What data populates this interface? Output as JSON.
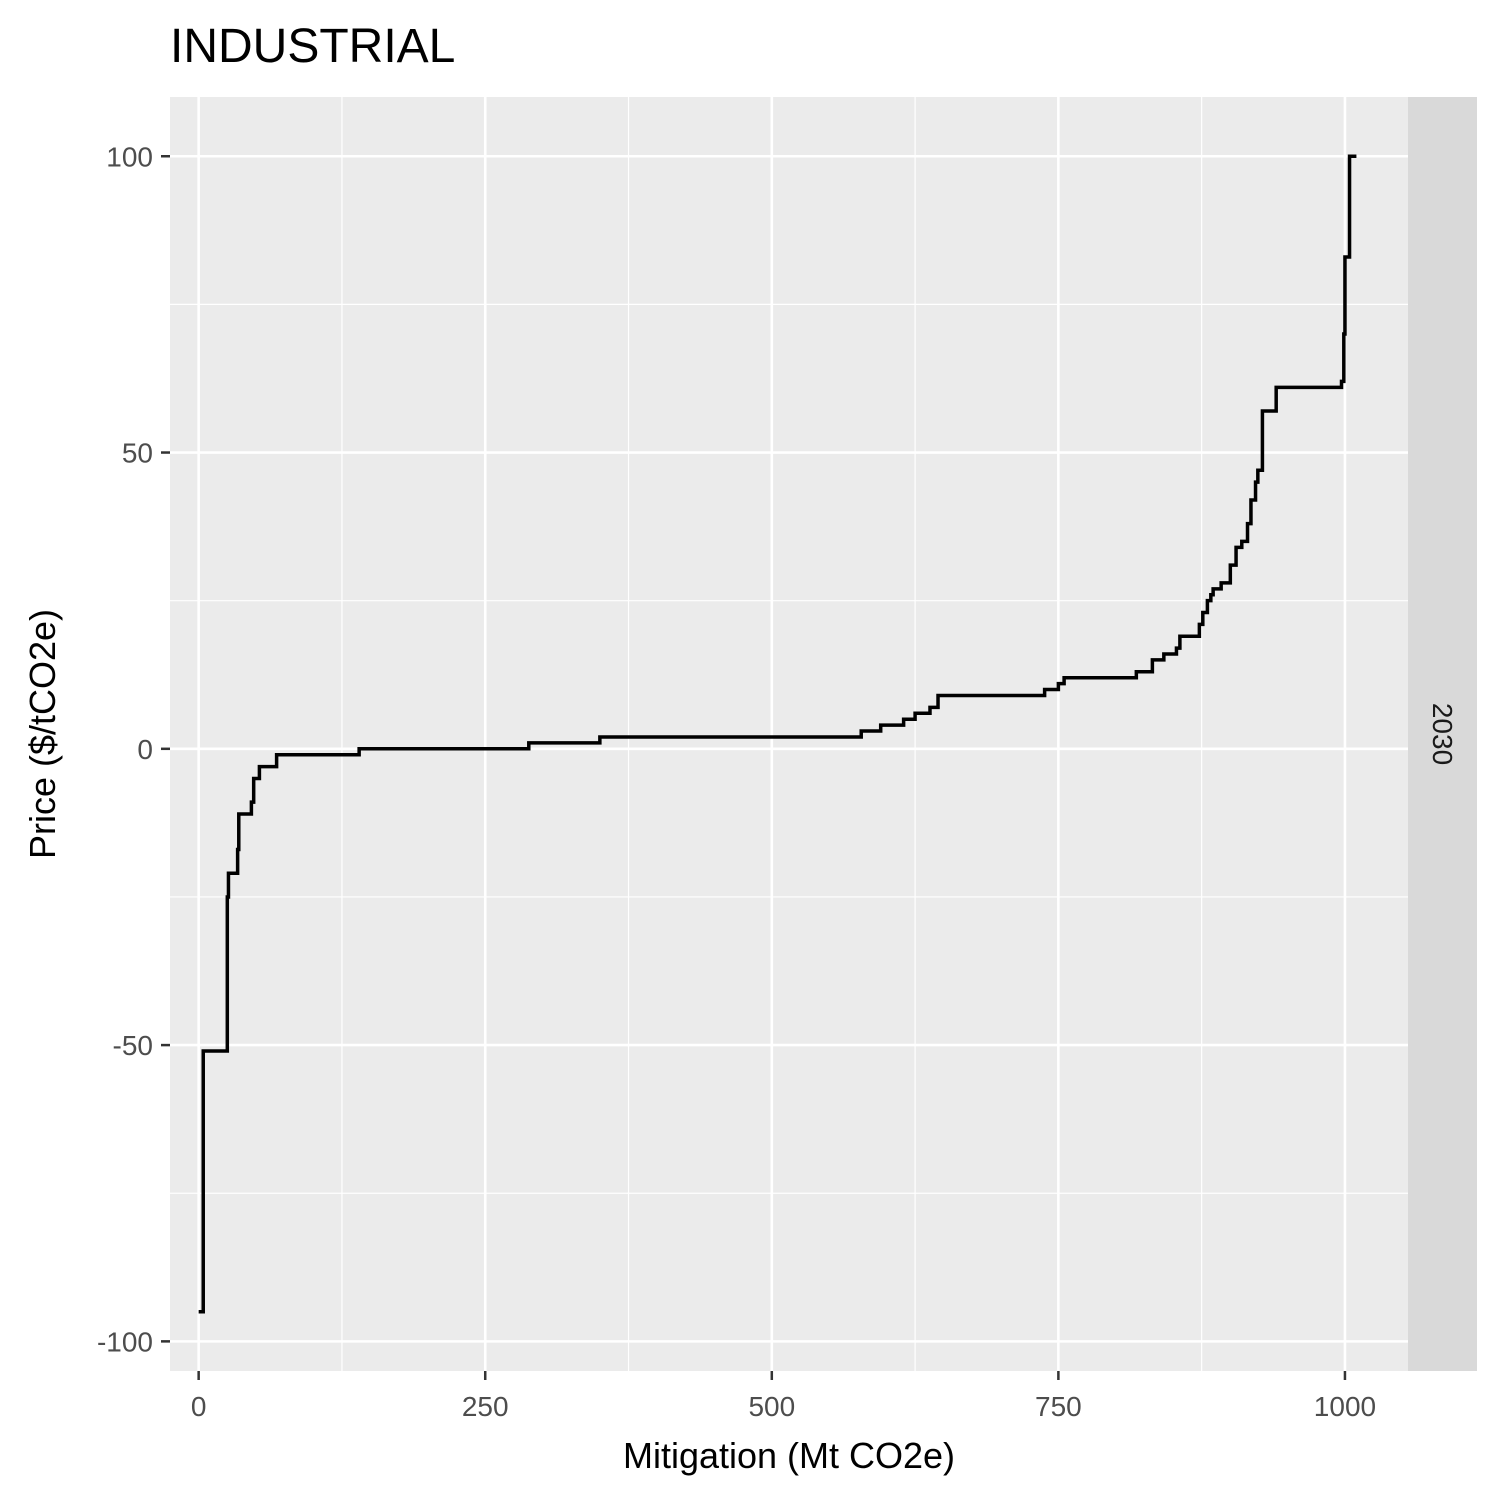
{
  "chart_data": {
    "type": "line",
    "step": true,
    "title": "INDUSTRIAL",
    "xlabel": "Mitigation (Mt CO2e)",
    "ylabel": "Price ($/tCO2e)",
    "facet_label": "2030",
    "xlim": [
      -25,
      1055
    ],
    "ylim": [
      -105,
      110
    ],
    "x_ticks": [
      0,
      250,
      500,
      750,
      1000
    ],
    "x_tick_labels": [
      "0",
      "250",
      "500",
      "750",
      "1000"
    ],
    "x_minor": [
      125,
      375,
      625,
      875
    ],
    "y_ticks": [
      -100,
      -50,
      0,
      50,
      100
    ],
    "y_tick_labels": [
      "-100",
      "-50",
      "0",
      "50",
      "100"
    ],
    "y_minor": [
      -75,
      -25,
      25,
      75
    ],
    "grid": true,
    "colors": {
      "panel": "#ebebeb",
      "strip": "#d9d9d9",
      "grid": "#ffffff",
      "line": "#000000",
      "tick": "#333333"
    },
    "series": [
      {
        "x": [
          0,
          4,
          4,
          25,
          25,
          26,
          26,
          34,
          34,
          35,
          35,
          46,
          46,
          48,
          48,
          53,
          53,
          68,
          68,
          140,
          140,
          288,
          288,
          350,
          350,
          578,
          578,
          595,
          595,
          615,
          615,
          625,
          625,
          638,
          638,
          645,
          645,
          658,
          658,
          738,
          738,
          750,
          750,
          755,
          755,
          818,
          818,
          832,
          832,
          842,
          842,
          853,
          853,
          856,
          856,
          873,
          873,
          876,
          876,
          880,
          880,
          883,
          883,
          885,
          885,
          892,
          892,
          900,
          900,
          905,
          905,
          910,
          910,
          915,
          915,
          918,
          918,
          922,
          922,
          924,
          924,
          928,
          928,
          940,
          940,
          947,
          947,
          958,
          958,
          980,
          980,
          988,
          988,
          997,
          997,
          999,
          999,
          1000,
          1000,
          1003,
          1003,
          1004,
          1004,
          1010,
          1010
        ],
        "y": [
          -95,
          -95,
          -51,
          -51,
          -25,
          -25,
          -21,
          -21,
          -17,
          -17,
          -11,
          -11,
          -9,
          -9,
          -5,
          -5,
          -3,
          -3,
          -1,
          -1,
          0,
          0,
          1,
          1,
          2,
          2,
          3,
          3,
          4,
          4,
          5,
          5,
          6,
          6,
          7,
          7,
          9,
          9,
          9,
          9,
          10,
          10,
          11,
          11,
          12,
          12,
          13,
          13,
          15,
          15,
          16,
          16,
          17,
          17,
          19,
          19,
          21,
          21,
          23,
          23,
          25,
          25,
          26,
          26,
          27,
          27,
          28,
          28,
          31,
          31,
          34,
          34,
          35,
          35,
          38,
          38,
          42,
          42,
          45,
          45,
          47,
          47,
          57,
          57,
          61,
          61,
          61,
          61,
          61,
          61,
          61,
          61,
          61,
          61,
          62,
          62,
          70,
          70,
          83,
          83,
          83,
          83,
          100,
          100,
          100
        ]
      }
    ]
  }
}
